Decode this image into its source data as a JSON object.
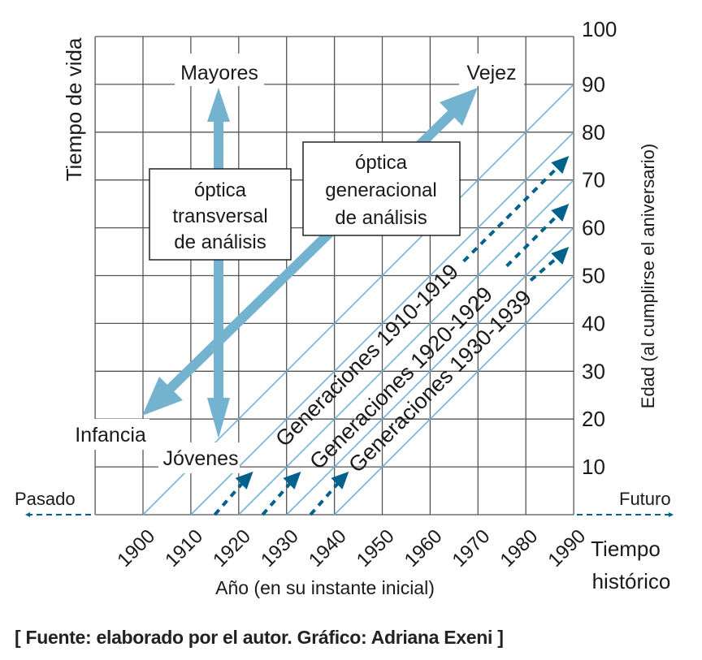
{
  "colors": {
    "grid": "#555555",
    "light_blue": "#74b3d0",
    "dark_blue": "#00618c",
    "text": "#1a1a1a"
  },
  "axes": {
    "y_left_title": "Tiempo de vida",
    "y_right_title": "Edad (al cumplirse el aniversario)",
    "x_title": "Año (en su instante inicial)",
    "x_right_title_line1": "Tiempo",
    "x_right_title_line2": "histórico",
    "past": "Pasado",
    "future": "Futuro",
    "year_ticks": [
      "1900",
      "1910",
      "1920",
      "1930",
      "1940",
      "1950",
      "1960",
      "1970",
      "1980",
      "1990"
    ],
    "age_ticks": [
      "10",
      "20",
      "30",
      "40",
      "50",
      "60",
      "70",
      "80",
      "90",
      "100"
    ]
  },
  "labels": {
    "older": "Mayores",
    "old_age": "Vejez",
    "childhood": "Infancia",
    "young": "Jóvenes"
  },
  "boxes": {
    "transversal": [
      "óptica",
      "transversal",
      "de análisis"
    ],
    "generational": [
      "óptica",
      "generacional",
      "de análisis"
    ]
  },
  "generations": [
    "Generaciones 1910-1919",
    "Generaciones 1920-1929",
    "Generaciones 1930-1939"
  ],
  "cohort_lines_start_years": [
    1900,
    1910,
    1920,
    1930,
    1940
  ],
  "source": "[ Fuente: elaborado por el autor. Gráfico: Adriana Exeni ]"
}
